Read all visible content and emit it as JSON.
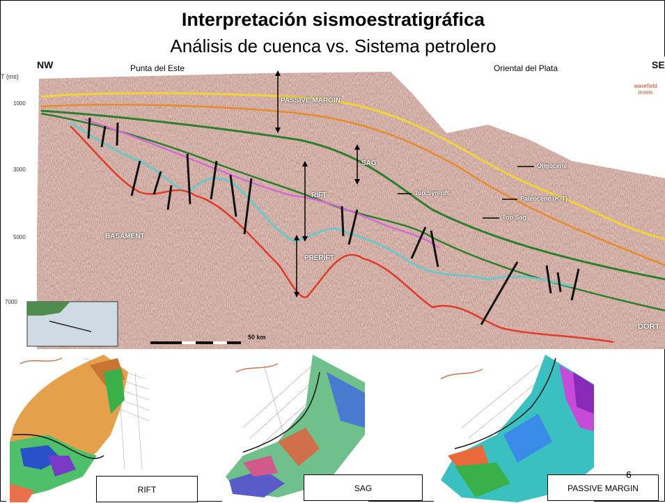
{
  "slide": {
    "title": "Interpretación sismoestratigráfica",
    "subtitle": "Análisis de cuenca vs. Sistema petrolero",
    "page_number": "6"
  },
  "section": {
    "corner_left": "NW",
    "corner_right": "SE",
    "label_left": "Punta del Este",
    "label_right": "Oriental del Plata",
    "axis_unit": "T (ms)",
    "time_ticks": [
      "1000",
      "3000",
      "5000",
      "7000"
    ],
    "units": [
      "PASSIVE MARGIN",
      "SAG",
      "RIFT",
      "PRERIFT",
      "BASAMENT"
    ],
    "horizons": [
      "Oligocene",
      "Top Syn-rift",
      "Paleocene (K-T)",
      "Top Sag"
    ],
    "scale_bar": "50 km",
    "logo": "wavefield inseis",
    "partial_label": "DORT",
    "colors": {
      "yellow": "#f2d33a",
      "green": "#2e7d2e",
      "orange": "#e88a2a",
      "magenta": "#d46bd4",
      "cyan": "#6fc6c6",
      "red": "#e03a2a"
    }
  },
  "maps": [
    {
      "caption": "RIFT"
    },
    {
      "caption": "SAG"
    },
    {
      "caption": "PASSIVE MARGIN"
    }
  ]
}
